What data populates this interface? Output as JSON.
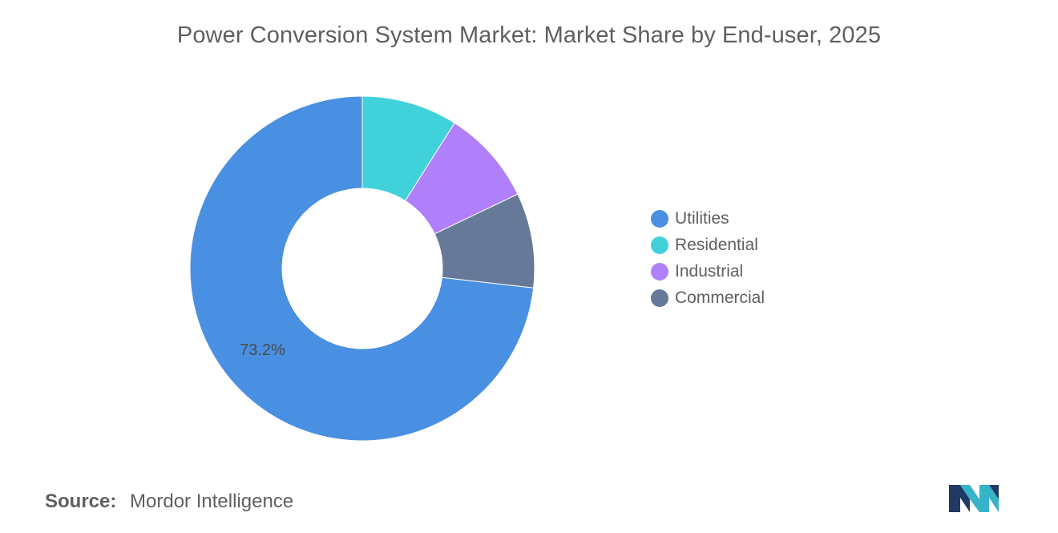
{
  "header": {
    "title": "Power Conversion System Market: Market Share by End-user, 2025"
  },
  "chart_data": {
    "type": "pie",
    "style": "donut",
    "title": "Power Conversion System Market: Market Share by End-user, 2025",
    "legend_position": "right",
    "series": [
      {
        "name": "Utilities",
        "value": 73.2,
        "color": "#4a90e2",
        "label": "73.2%"
      },
      {
        "name": "Residential",
        "value": 9.0,
        "color": "#41d1db",
        "label": ""
      },
      {
        "name": "Industrial",
        "value": 8.9,
        "color": "#b07ffa",
        "label": ""
      },
      {
        "name": "Commercial",
        "value": 8.9,
        "color": "#667999",
        "label": ""
      }
    ]
  },
  "footer": {
    "source_label": "Source:",
    "source_value": "Mordor Intelligence"
  },
  "logo": {
    "icon": "mordor-intelligence-logo-icon",
    "colors": [
      "#1f3a63",
      "#36b3c9"
    ]
  }
}
